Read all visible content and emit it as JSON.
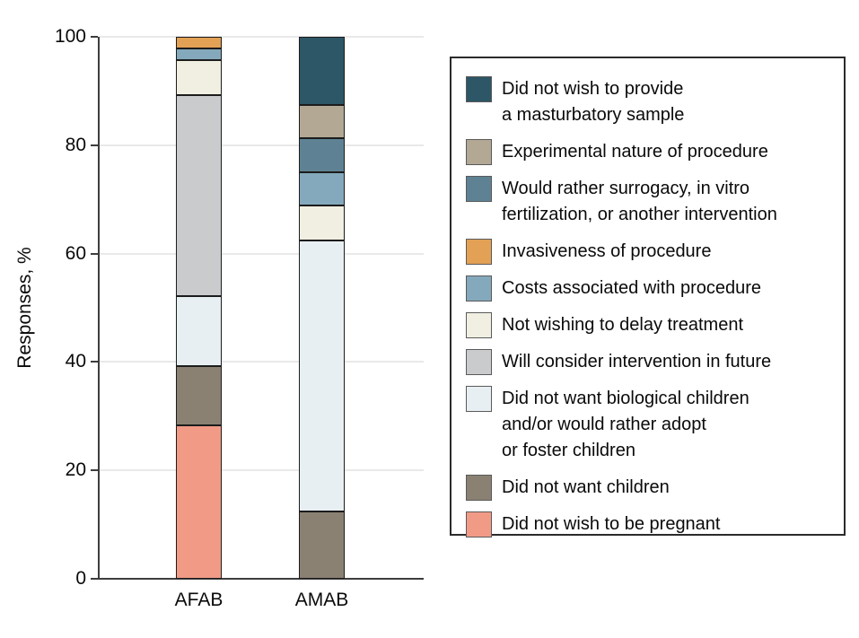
{
  "colors": {
    "background": "#ffffff",
    "axis": "#3d3d3d",
    "grid": "#e9e9e9",
    "text": "#0a0a0a",
    "segment_border": "#1c1c1c",
    "legend_border": "#2b2b2b",
    "swatch_border": "#5a5a5a"
  },
  "chart_data": {
    "type": "bar",
    "subtype": "stacked-vertical-100pct",
    "title": "",
    "xlabel": "",
    "ylabel": "Responses, %",
    "categories": [
      "AFAB",
      "AMAB"
    ],
    "ylim": [
      0,
      100
    ],
    "yticks": [
      0,
      20,
      40,
      60,
      80,
      100
    ],
    "grid": "horizontal",
    "legend_position": "right",
    "series": [
      {
        "name": "Did not wish to be pregnant",
        "color": "#f19b87",
        "values": [
          28.3,
          0
        ]
      },
      {
        "name": "Did not want children",
        "color": "#8a8173",
        "values": [
          10.9,
          12.5
        ]
      },
      {
        "name": "Did not want biological children and/or would rather adopt or foster children",
        "color": "#e8eff3",
        "values": [
          13.0,
          50.0
        ]
      },
      {
        "name": "Will consider intervention in future",
        "color": "#c9cbcd",
        "values": [
          37.0,
          0
        ]
      },
      {
        "name": "Not wishing to delay treatment",
        "color": "#f0efe2",
        "values": [
          6.5,
          6.3
        ]
      },
      {
        "name": "Costs associated with procedure",
        "color": "#84a9bc",
        "values": [
          2.2,
          6.2
        ]
      },
      {
        "name": "Invasiveness of procedure",
        "color": "#e2a155",
        "values": [
          2.1,
          0
        ]
      },
      {
        "name": "Would rather surrogacy, in vitro fertilization, or another intervention",
        "color": "#5e8294",
        "values": [
          0,
          6.3
        ]
      },
      {
        "name": "Experimental nature of procedure",
        "color": "#b2a894",
        "values": [
          0,
          6.2
        ]
      },
      {
        "name": "Did not wish to provide a masturbatory sample",
        "color": "#2d5666",
        "values": [
          0,
          12.5
        ]
      }
    ],
    "legend": [
      {
        "color": "#2d5666",
        "label": "Did not wish to provide\na masturbatory sample"
      },
      {
        "color": "#b2a894",
        "label": "Experimental nature of procedure"
      },
      {
        "color": "#5e8294",
        "label": "Would rather surrogacy, in vitro\nfertilization, or another intervention"
      },
      {
        "color": "#e2a155",
        "label": "Invasiveness of procedure"
      },
      {
        "color": "#84a9bc",
        "label": "Costs associated with procedure"
      },
      {
        "color": "#f0efe2",
        "label": "Not wishing to delay treatment"
      },
      {
        "color": "#c9cbcd",
        "label": "Will consider intervention in future"
      },
      {
        "color": "#e8eff3",
        "label": "Did not want biological children\nand/or would rather adopt\nor foster children"
      },
      {
        "color": "#8a8173",
        "label": "Did not want children"
      },
      {
        "color": "#f19b87",
        "label": "Did not wish to be pregnant"
      }
    ]
  }
}
